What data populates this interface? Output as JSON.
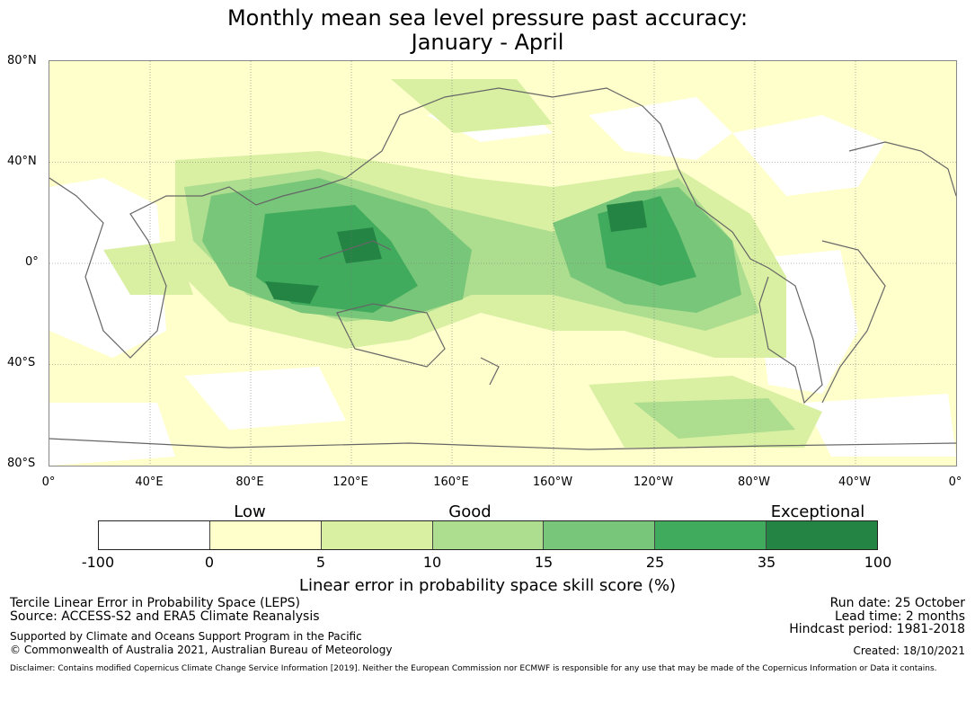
{
  "title": {
    "line1": "Monthly mean sea level pressure past accuracy:",
    "line2": "January - April"
  },
  "map": {
    "lat_labels": [
      "80°N",
      "40°N",
      "0°",
      "40°S",
      "80°S"
    ],
    "lon_labels": [
      "0°",
      "40°E",
      "80°E",
      "120°E",
      "160°E",
      "160°W",
      "120°W",
      "80°W",
      "40°W",
      "0°"
    ]
  },
  "legend": {
    "categories": [
      "Low",
      "Good",
      "Exceptional"
    ],
    "ticks": [
      "-100",
      "0",
      "5",
      "10",
      "15",
      "25",
      "35",
      "100"
    ],
    "colors": [
      "#ffffff",
      "#ffffcc",
      "#d9f0a3",
      "#addd8e",
      "#78c679",
      "#41ab5d",
      "#238443"
    ],
    "label": "Linear error in probability space skill score (%)"
  },
  "info_left": {
    "line1": "Tercile Linear Error in Probability Space (LEPS)",
    "line2": "Source: ACCESS-S2 and ERA5 Climate Reanalysis",
    "line3": "Supported by Climate and Oceans Support Program in the Pacific",
    "line4": "© Commonwealth of Australia 2021, Australian Bureau of Meteorology"
  },
  "info_right": {
    "run_date": "Run date: 25 October",
    "lead_time": "Lead time: 2 months",
    "hindcast": "Hindcast period: 1981-2018",
    "created": "Created: 18/10/2021"
  },
  "disclaimer": "Disclaimer: Contains modified Copernicus Climate Change Service Information [2019]. Neither the European Commission nor ECMWF is responsible for any use that may be made of the Copernicus Information or Data it contains."
}
